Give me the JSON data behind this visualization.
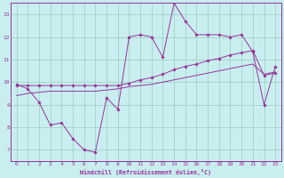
{
  "xlabel": "Windchill (Refroidissement éolien,°C)",
  "bg_color": "#c8eef0",
  "line_color": "#993399",
  "grid_color": "#99ccbb",
  "xlim": [
    -0.5,
    23.5
  ],
  "ylim": [
    6.5,
    13.5
  ],
  "xticks": [
    0,
    1,
    2,
    3,
    4,
    5,
    6,
    7,
    8,
    9,
    10,
    11,
    12,
    13,
    14,
    15,
    16,
    17,
    18,
    19,
    20,
    21,
    22,
    23
  ],
  "yticks": [
    7,
    8,
    9,
    10,
    11,
    12,
    13
  ],
  "series1_x": [
    0,
    1,
    2,
    3,
    4,
    5,
    6,
    7,
    8,
    9,
    10,
    11,
    12,
    13,
    14,
    15,
    16,
    17,
    18,
    19,
    20,
    21,
    22,
    23
  ],
  "series1_y": [
    9.9,
    9.7,
    9.1,
    8.1,
    8.2,
    7.5,
    7.0,
    6.9,
    9.3,
    8.8,
    12.0,
    12.1,
    12.0,
    11.1,
    13.5,
    12.7,
    12.1,
    12.1,
    12.1,
    12.0,
    12.1,
    11.35,
    9.0,
    10.7
  ],
  "series2_x": [
    0,
    1,
    2,
    3,
    4,
    5,
    6,
    7,
    8,
    9,
    10,
    11,
    12,
    13,
    14,
    15,
    16,
    17,
    18,
    19,
    20,
    21,
    22,
    23
  ],
  "series2_y": [
    9.85,
    9.85,
    9.85,
    9.85,
    9.85,
    9.85,
    9.85,
    9.85,
    9.85,
    9.85,
    9.95,
    10.1,
    10.2,
    10.35,
    10.55,
    10.7,
    10.8,
    10.95,
    11.05,
    11.2,
    11.3,
    11.4,
    10.3,
    10.4
  ],
  "series3_x": [
    0,
    1,
    2,
    3,
    4,
    5,
    6,
    7,
    8,
    9,
    10,
    11,
    12,
    13,
    14,
    15,
    16,
    17,
    18,
    19,
    20,
    21,
    22,
    23
  ],
  "series3_y": [
    9.4,
    9.5,
    9.55,
    9.6,
    9.6,
    9.6,
    9.6,
    9.6,
    9.65,
    9.7,
    9.8,
    9.85,
    9.9,
    10.0,
    10.1,
    10.2,
    10.3,
    10.4,
    10.5,
    10.6,
    10.7,
    10.8,
    10.35,
    10.45
  ]
}
